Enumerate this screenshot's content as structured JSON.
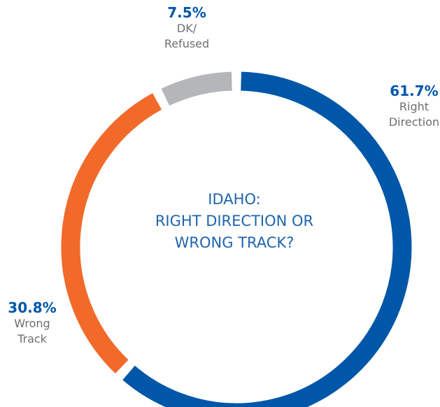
{
  "chart_data": {
    "type": "donut",
    "title": "IDAHO:\nRIGHT DIRECTION OR\nWRONG TRACK?",
    "categories": [
      "Right\nDirection",
      "Wrong\nTrack",
      "DK/\nRefused"
    ],
    "values": [
      61.7,
      30.8,
      7.5
    ],
    "value_labels": [
      "61.7%",
      "30.8%",
      "7.5%"
    ],
    "colors": [
      "#0057a8",
      "#f26a2a",
      "#b5b6b9"
    ]
  }
}
